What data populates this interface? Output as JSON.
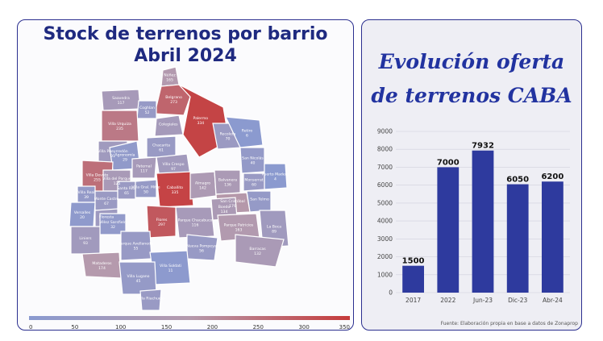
{
  "map": {
    "title_line1": "Stock de terrenos por barrio",
    "title_line2": "Abril 2024",
    "colorbar": {
      "ticks": [
        "0",
        "50",
        "100",
        "150",
        "200",
        "250",
        "300",
        "350"
      ],
      "min": 0,
      "max": 350,
      "low_color": "#8a9ad0",
      "high_color": "#c63b3b"
    },
    "barrios": [
      {
        "name": "Núñez",
        "value": "165",
        "shade": 165
      },
      {
        "name": "Saavedra",
        "value": "117",
        "shade": 117
      },
      {
        "name": "Belgrano",
        "value": "273",
        "shade": 273
      },
      {
        "name": "Coghlan",
        "value": "52",
        "shade": 52
      },
      {
        "name": "Villa Urquiza",
        "value": "235",
        "shade": 235
      },
      {
        "name": "Villa Pueyrredón",
        "value": "91",
        "shade": 91
      },
      {
        "name": "Colegiales",
        "value": "",
        "shade": 110
      },
      {
        "name": "Palermo",
        "value": "334",
        "shade": 334
      },
      {
        "name": "Agronomía",
        "value": "29",
        "shade": 29
      },
      {
        "name": "Chacarita",
        "value": "61",
        "shade": 61
      },
      {
        "name": "Paternal",
        "value": "117",
        "shade": 117
      },
      {
        "name": "Villa Devoto",
        "value": "255",
        "shade": 255
      },
      {
        "name": "Villa del Parque",
        "value": "125",
        "shade": 125
      },
      {
        "name": "Villa Crespo",
        "value": "97",
        "shade": 97
      },
      {
        "name": "Recoleta",
        "value": "70",
        "shade": 70
      },
      {
        "name": "Retiro",
        "value": "6",
        "shade": 6
      },
      {
        "name": "Villa Real",
        "value": "39",
        "shade": 39
      },
      {
        "name": "Monte Castro",
        "value": "67",
        "shade": 67
      },
      {
        "name": "Santa Rita",
        "value": "65",
        "shade": 65
      },
      {
        "name": "Villa Gral. Mitre",
        "value": "50",
        "shade": 50
      },
      {
        "name": "Caballito",
        "value": "335",
        "shade": 335
      },
      {
        "name": "Almagro",
        "value": "142",
        "shade": 142
      },
      {
        "name": "Balvanera",
        "value": "136",
        "shade": 136
      },
      {
        "name": "San Nicolás",
        "value": "40",
        "shade": 40
      },
      {
        "name": "Puerto Madero",
        "value": "4",
        "shade": 4
      },
      {
        "name": "Monserrat",
        "value": "60",
        "shade": 60
      },
      {
        "name": "San Telmo",
        "value": "",
        "shade": 45
      },
      {
        "name": "San Cristóbal",
        "value": "179",
        "shade": 179
      },
      {
        "name": "Versalles",
        "value": "20",
        "shade": 20
      },
      {
        "name": "Floresta",
        "value": "",
        "shade": 80
      },
      {
        "name": "Vélez Sarsfield",
        "value": "32",
        "shade": 32
      },
      {
        "name": "Flores",
        "value": "297",
        "shade": 297
      },
      {
        "name": "Parque Chacabuco",
        "value": "116",
        "shade": 116
      },
      {
        "name": "Boedo",
        "value": "134",
        "shade": 134
      },
      {
        "name": "Parque Patricios",
        "value": "163",
        "shade": 163
      },
      {
        "name": "La Boca",
        "value": "89",
        "shade": 89
      },
      {
        "name": "Barracas",
        "value": "132",
        "shade": 132
      },
      {
        "name": "Liniers",
        "value": "93",
        "shade": 93
      },
      {
        "name": "Parque Avellaneda",
        "value": "55",
        "shade": 55
      },
      {
        "name": "Nueva Pompeya",
        "value": "56",
        "shade": 56
      },
      {
        "name": "Mataderos",
        "value": "174",
        "shade": 174
      },
      {
        "name": "Villa Soldati",
        "value": "11",
        "shade": 11
      },
      {
        "name": "Villa Lugano",
        "value": "45",
        "shade": 45
      },
      {
        "name": "Villa Riachuelo",
        "value": "",
        "shade": 60
      }
    ]
  },
  "chart_title_line1": "Evolución oferta",
  "chart_title_line2": "de terrenos CABA",
  "source": "Fuente: Elaboración propia en base a datos de Zonaprop",
  "chart_data": {
    "type": "bar",
    "categories": [
      "2017",
      "2022",
      "Jun-23",
      "Dic-23",
      "Abr-24"
    ],
    "values": [
      1500,
      7000,
      7932,
      6050,
      6200
    ],
    "data_labels": [
      "1500",
      "7000",
      "7932",
      "6050",
      "6200"
    ],
    "yticks": [
      "0",
      "1000",
      "2000",
      "3000",
      "4000",
      "5000",
      "6000",
      "7000",
      "8000",
      "9000"
    ],
    "ylim": [
      0,
      9000
    ],
    "bar_color": "#2e3a9e",
    "grid": true
  }
}
